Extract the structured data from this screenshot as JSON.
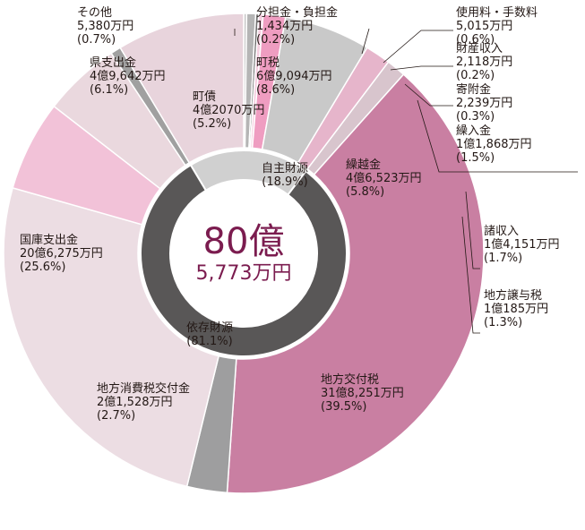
{
  "chart_data": {
    "type": "pie",
    "total": {
      "line1": "80億",
      "line2": "5,773万円"
    },
    "groups": [
      {
        "name": "自主財源",
        "pct": "(18.9%)",
        "value": 18.9,
        "color": "#d0d0d0"
      },
      {
        "name": "依存財源",
        "pct": "(81.1%)",
        "value": 81.1,
        "color": "#595757"
      }
    ],
    "slices": [
      {
        "name": "分担金・負担金",
        "amount": "1,434万円",
        "pct": "(0.2%)",
        "value": 0.2,
        "color": "#c9c9c9",
        "group": 0
      },
      {
        "name": "使用料・手数料",
        "amount": "5,015万円",
        "pct": "(0.6%)",
        "value": 0.6,
        "color": "#b5b5b5",
        "group": 0
      },
      {
        "name": "財産収入",
        "amount": "2,118万円",
        "pct": "(0.2%)",
        "value": 0.2,
        "color": "#727171",
        "group": 0
      },
      {
        "name": "寄附金",
        "amount": "2,239万円",
        "pct": "(0.3%)",
        "value": 0.3,
        "color": "#f5cfe0",
        "group": 0
      },
      {
        "name": "繰入金",
        "amount": "1億1,868万円",
        "pct": "(1.5%)",
        "value": 1.5,
        "color": "#ef9dc1",
        "group": 0
      },
      {
        "name": "繰越金",
        "amount": "4億6,523万円",
        "pct": "(5.8%)",
        "value": 5.8,
        "color": "#c9c9c9",
        "group": 0
      },
      {
        "name": "諸収入",
        "amount": "1億4,151万円",
        "pct": "(1.7%)",
        "value": 1.7,
        "color": "#e6b5cb",
        "group": 0
      },
      {
        "name": "地方譲与税",
        "amount": "1億185万円",
        "pct": "(1.3%)",
        "value": 1.3,
        "color": "#d8c5cd",
        "group": 1
      },
      {
        "name": "地方交付税",
        "amount": "31億8,251万円",
        "pct": "(39.5%)",
        "value": 39.5,
        "color": "#c97fa2",
        "group": 1
      },
      {
        "name": "地方消費税交付金",
        "amount": "2億1,528万円",
        "pct": "(2.7%)",
        "value": 2.7,
        "color": "#9e9e9f",
        "group": 1
      },
      {
        "name": "国庫支出金",
        "amount": "20億6,275万円",
        "pct": "(25.6%)",
        "value": 25.6,
        "color": "#ecdde3",
        "group": 1
      },
      {
        "name": "県支出金",
        "amount": "4億9,642万円",
        "pct": "(6.1%)",
        "value": 6.1,
        "color": "#f2c2d8",
        "group": 1
      },
      {
        "name": "町債",
        "amount": "4億2070万円",
        "pct": "(5.2%)",
        "value": 5.2,
        "color": "#ead8de",
        "group": 1
      },
      {
        "name": "その他",
        "amount": "5,380万円",
        "pct": "(0.7%)",
        "value": 0.7,
        "color": "#a0a0a0",
        "group": 1
      },
      {
        "name": "町税",
        "amount": "6億9,094万円",
        "pct": "(8.6%)",
        "value": 8.6,
        "color": "#e8d4dc",
        "group": 0
      }
    ]
  }
}
